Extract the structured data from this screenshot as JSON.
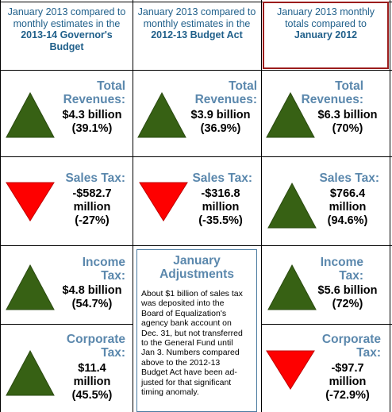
{
  "headers": {
    "col1": {
      "line": "January 2013 compared to monthly estimates in the",
      "bold": "2013-14 Governor's Budget"
    },
    "col2": {
      "line": "January 2013 compared to monthly estimates in the",
      "bold": "2012-13 Budget Act"
    },
    "col3": {
      "line": "January 2013 monthly totals compared to",
      "bold": "January 2012"
    }
  },
  "colors": {
    "up": "#376114",
    "down": "#fe0000",
    "title": "#5b88ad",
    "header": "#1f5f8a"
  },
  "rows": {
    "revenues": {
      "c1": {
        "title1": "Total",
        "title2": "Revenues:",
        "amount": "$4.3 billion",
        "pct": "(39.1%)",
        "direction": "up"
      },
      "c2": {
        "title1": "Total",
        "title2": "Revenues:",
        "amount": "$3.9 billion",
        "pct": "(36.9%)",
        "direction": "up"
      },
      "c3": {
        "title1": "Total",
        "title2": "Revenues:",
        "amount": "$6.3 billion",
        "pct": "(70%)",
        "direction": "up"
      }
    },
    "sales": {
      "c1": {
        "title": "Sales Tax:",
        "amount1": "-$582.7",
        "amount2": "million",
        "pct": "(-27%)",
        "direction": "down"
      },
      "c2": {
        "title": "Sales Tax:",
        "amount1": "-$316.8",
        "amount2": "million",
        "pct": "(-35.5%)",
        "direction": "down"
      },
      "c3": {
        "title": "Sales Tax:",
        "amount1": "$766.4",
        "amount2": "million",
        "pct": "(94.6%)",
        "direction": "up"
      }
    },
    "income": {
      "c1": {
        "title1": "Income",
        "title2": "Tax:",
        "amount": "$4.8 billion",
        "pct": "(54.7%)",
        "direction": "up"
      },
      "c3": {
        "title1": "Income",
        "title2": "Tax:",
        "amount": "$5.6 billion",
        "pct": "(72%)",
        "direction": "up"
      }
    },
    "corporate": {
      "c1": {
        "title1": "Corporate",
        "title2": "Tax:",
        "amount1": "$11.4",
        "amount2": "million",
        "pct": "(45.5%)",
        "direction": "up"
      },
      "c3": {
        "title1": "Corporate",
        "title2": "Tax:",
        "amount1": "-$97.7",
        "amount2": "million",
        "pct": "(-72.9%)",
        "direction": "down"
      }
    }
  },
  "adjustments": {
    "title1": "January",
    "title2": "Adjustments",
    "lines": [
      "About $1 billion of sales tax",
      "was deposited into the",
      "Board of Equalization's",
      "agency bank account on",
      "Dec. 31, but not transferred",
      "to the General Fund until",
      "Jan 3. Numbers compared",
      "above to the 2012-13",
      "Budget Act have been ad-",
      "justed for that significant",
      "timing anomaly."
    ]
  }
}
